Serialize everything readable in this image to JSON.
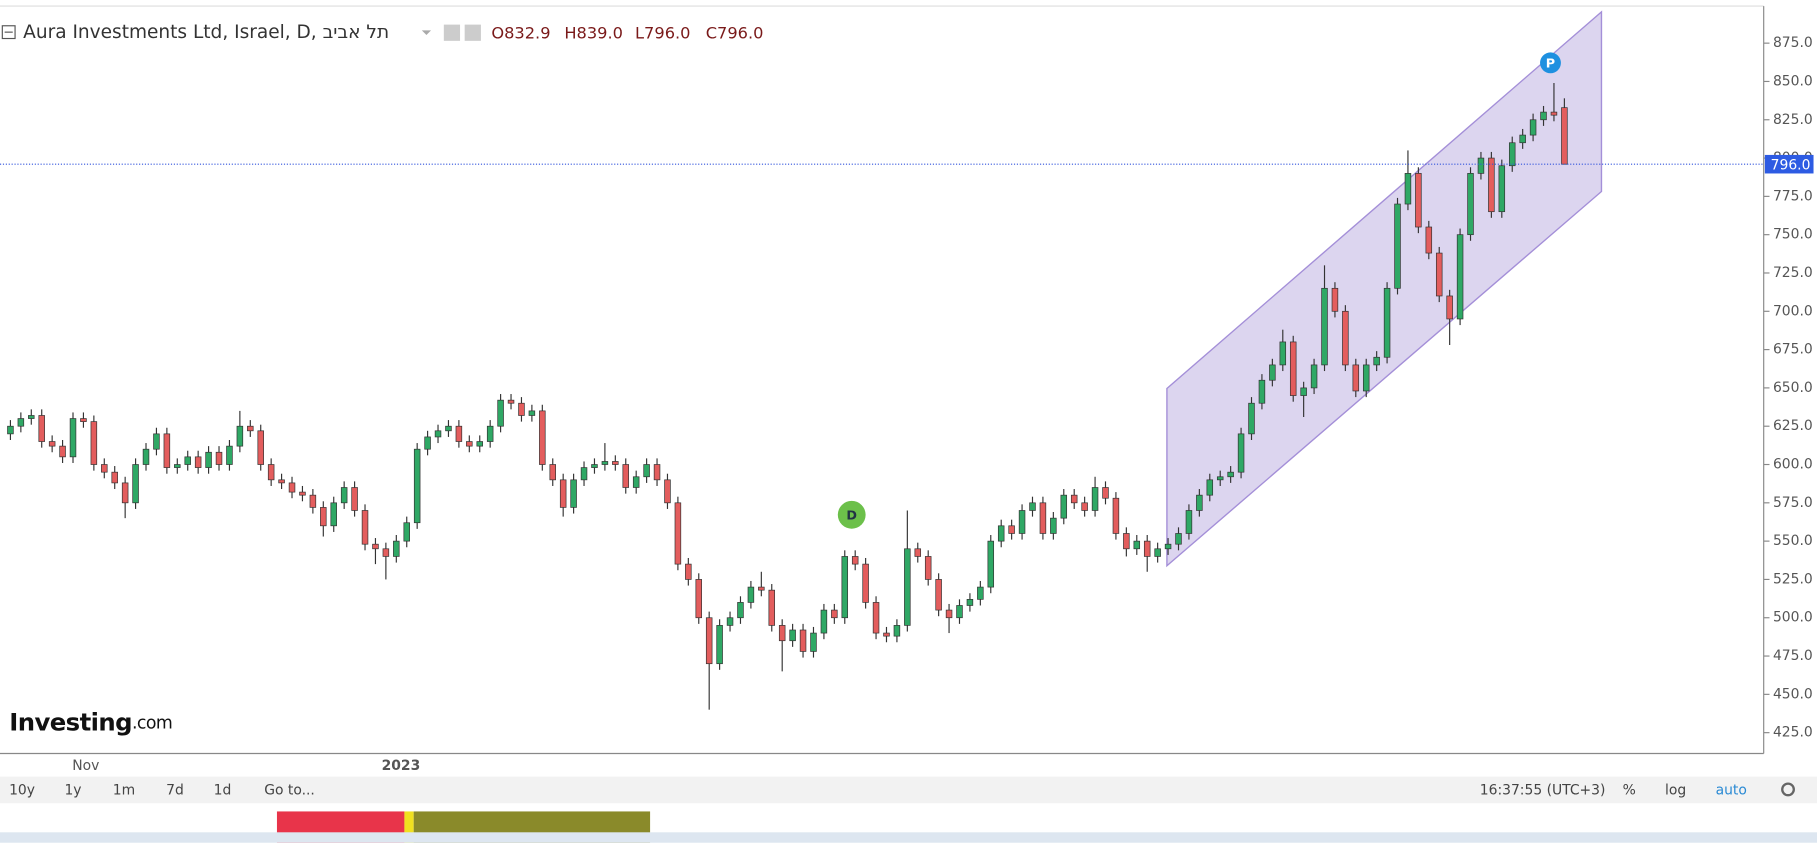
{
  "chart_data": {
    "type": "candlestick",
    "title": "Aura Investments Ltd, Israel, D, תל אביב",
    "ohlc_labels": [
      "O832.9",
      "H839.0",
      "L796.0",
      "C796.0"
    ],
    "last_price": {
      "value": 796,
      "label": "796.0"
    },
    "annotations": [
      "D",
      "P"
    ],
    "x_labels": [
      "Nov",
      "2023"
    ],
    "ylim": [
      411.4,
      899.2
    ],
    "yticks": [
      {
        "value": 425,
        "label": "425.0"
      },
      {
        "value": 450,
        "label": "450.0"
      },
      {
        "value": 475,
        "label": "475.0"
      },
      {
        "value": 500,
        "label": "500.0"
      },
      {
        "value": 525,
        "label": "525.0"
      },
      {
        "value": 550,
        "label": "550.0"
      },
      {
        "value": 575,
        "label": "575.0"
      },
      {
        "value": 600,
        "label": "600.0"
      },
      {
        "value": 625,
        "label": "625.0"
      },
      {
        "value": 650,
        "label": "650.0"
      },
      {
        "value": 675,
        "label": "675.0"
      },
      {
        "value": 700,
        "label": "700.0"
      },
      {
        "value": 725,
        "label": "725.0"
      },
      {
        "value": 750,
        "label": "750.0"
      },
      {
        "value": 775,
        "label": "775.0"
      },
      {
        "value": 800,
        "label": "800.0"
      },
      {
        "value": 825,
        "label": "825.0"
      },
      {
        "value": 850,
        "label": "850.0"
      },
      {
        "value": 875,
        "label": "875.0"
      }
    ],
    "up_color": "#2fa865",
    "down_color": "#e35d5d",
    "candles": [
      [
        620,
        629,
        616,
        625
      ],
      [
        625,
        634,
        621,
        630
      ],
      [
        630,
        636,
        626,
        632
      ],
      [
        632,
        636,
        611,
        615
      ],
      [
        615,
        619,
        608,
        612
      ],
      [
        612,
        616,
        601,
        605
      ],
      [
        605,
        634,
        601,
        630
      ],
      [
        630,
        634,
        624,
        628
      ],
      [
        628,
        632,
        596,
        600
      ],
      [
        600,
        604,
        591,
        595
      ],
      [
        595,
        599,
        584,
        588
      ],
      [
        588,
        592,
        565,
        575
      ],
      [
        575,
        604,
        571,
        600
      ],
      [
        600,
        614,
        596,
        610
      ],
      [
        610,
        624,
        606,
        620
      ],
      [
        620,
        624,
        594,
        598
      ],
      [
        598,
        604,
        594,
        600
      ],
      [
        600,
        609,
        596,
        605
      ],
      [
        605,
        609,
        594,
        598
      ],
      [
        598,
        612,
        594,
        608
      ],
      [
        608,
        612,
        596,
        600
      ],
      [
        600,
        616,
        596,
        612
      ],
      [
        612,
        635,
        608,
        625
      ],
      [
        625,
        629,
        618,
        622
      ],
      [
        622,
        626,
        596,
        600
      ],
      [
        600,
        604,
        586,
        590
      ],
      [
        590,
        594,
        584,
        588
      ],
      [
        588,
        592,
        578,
        582
      ],
      [
        582,
        586,
        576,
        580
      ],
      [
        580,
        584,
        568,
        572
      ],
      [
        572,
        576,
        553,
        560
      ],
      [
        560,
        579,
        556,
        575
      ],
      [
        575,
        589,
        571,
        585
      ],
      [
        585,
        589,
        566,
        570
      ],
      [
        570,
        574,
        544,
        548
      ],
      [
        548,
        552,
        535,
        545
      ],
      [
        545,
        549,
        525,
        540
      ],
      [
        540,
        554,
        536,
        550
      ],
      [
        550,
        566,
        546,
        562
      ],
      [
        562,
        614,
        558,
        610
      ],
      [
        610,
        622,
        606,
        618
      ],
      [
        618,
        626,
        614,
        622
      ],
      [
        622,
        629,
        618,
        625
      ],
      [
        625,
        629,
        611,
        615
      ],
      [
        615,
        619,
        608,
        612
      ],
      [
        612,
        619,
        608,
        615
      ],
      [
        615,
        629,
        611,
        625
      ],
      [
        625,
        646,
        621,
        642
      ],
      [
        642,
        646,
        636,
        640
      ],
      [
        640,
        644,
        628,
        632
      ],
      [
        632,
        639,
        628,
        635
      ],
      [
        635,
        639,
        596,
        600
      ],
      [
        600,
        604,
        586,
        590
      ],
      [
        590,
        594,
        566,
        572
      ],
      [
        572,
        594,
        568,
        590
      ],
      [
        590,
        602,
        586,
        598
      ],
      [
        598,
        604,
        594,
        600
      ],
      [
        600,
        614,
        596,
        602
      ],
      [
        602,
        606,
        596,
        600
      ],
      [
        600,
        604,
        581,
        585
      ],
      [
        585,
        596,
        581,
        592
      ],
      [
        592,
        604,
        588,
        600
      ],
      [
        600,
        604,
        586,
        590
      ],
      [
        590,
        594,
        571,
        575
      ],
      [
        575,
        579,
        531,
        535
      ],
      [
        535,
        539,
        521,
        525
      ],
      [
        525,
        529,
        496,
        500
      ],
      [
        500,
        504,
        440,
        470
      ],
      [
        470,
        499,
        466,
        495
      ],
      [
        495,
        504,
        491,
        500
      ],
      [
        500,
        514,
        496,
        510
      ],
      [
        510,
        524,
        506,
        520
      ],
      [
        520,
        530,
        514,
        518
      ],
      [
        518,
        522,
        491,
        495
      ],
      [
        495,
        499,
        465,
        485
      ],
      [
        485,
        496,
        481,
        492
      ],
      [
        492,
        496,
        474,
        478
      ],
      [
        478,
        494,
        474,
        490
      ],
      [
        490,
        509,
        486,
        505
      ],
      [
        505,
        509,
        496,
        500
      ],
      [
        500,
        544,
        496,
        540
      ],
      [
        540,
        544,
        531,
        535
      ],
      [
        535,
        539,
        506,
        510
      ],
      [
        510,
        514,
        486,
        490
      ],
      [
        490,
        494,
        484,
        488
      ],
      [
        488,
        499,
        484,
        495
      ],
      [
        495,
        570,
        491,
        545
      ],
      [
        545,
        549,
        536,
        540
      ],
      [
        540,
        544,
        521,
        525
      ],
      [
        525,
        529,
        501,
        505
      ],
      [
        505,
        509,
        490,
        500
      ],
      [
        500,
        512,
        496,
        508
      ],
      [
        508,
        516,
        504,
        512
      ],
      [
        512,
        524,
        508,
        520
      ],
      [
        520,
        554,
        516,
        550
      ],
      [
        550,
        564,
        546,
        560
      ],
      [
        560,
        564,
        551,
        555
      ],
      [
        555,
        574,
        551,
        570
      ],
      [
        570,
        579,
        566,
        575
      ],
      [
        575,
        579,
        551,
        555
      ],
      [
        555,
        569,
        551,
        565
      ],
      [
        565,
        584,
        561,
        580
      ],
      [
        580,
        584,
        571,
        575
      ],
      [
        575,
        579,
        566,
        570
      ],
      [
        570,
        592,
        566,
        585
      ],
      [
        585,
        589,
        574,
        578
      ],
      [
        578,
        582,
        551,
        555
      ],
      [
        555,
        559,
        540,
        545
      ],
      [
        545,
        554,
        541,
        550
      ],
      [
        550,
        554,
        530,
        540
      ],
      [
        540,
        549,
        536,
        545
      ],
      [
        545,
        552,
        541,
        548
      ],
      [
        548,
        559,
        544,
        555
      ],
      [
        555,
        574,
        551,
        570
      ],
      [
        570,
        584,
        566,
        580
      ],
      [
        580,
        594,
        576,
        590
      ],
      [
        590,
        596,
        586,
        592
      ],
      [
        592,
        599,
        588,
        595
      ],
      [
        595,
        624,
        591,
        620
      ],
      [
        620,
        644,
        616,
        640
      ],
      [
        640,
        659,
        636,
        655
      ],
      [
        655,
        669,
        651,
        665
      ],
      [
        665,
        688,
        661,
        680
      ],
      [
        680,
        684,
        641,
        645
      ],
      [
        645,
        654,
        631,
        650
      ],
      [
        650,
        669,
        646,
        665
      ],
      [
        665,
        730,
        661,
        715
      ],
      [
        715,
        719,
        696,
        700
      ],
      [
        700,
        704,
        661,
        665
      ],
      [
        665,
        669,
        644,
        648
      ],
      [
        648,
        669,
        644,
        665
      ],
      [
        665,
        674,
        661,
        670
      ],
      [
        670,
        719,
        666,
        715
      ],
      [
        715,
        774,
        711,
        770
      ],
      [
        770,
        805,
        766,
        790
      ],
      [
        790,
        794,
        751,
        755
      ],
      [
        755,
        759,
        734,
        738
      ],
      [
        738,
        742,
        706,
        710
      ],
      [
        710,
        714,
        678,
        695
      ],
      [
        695,
        754,
        691,
        750
      ],
      [
        750,
        794,
        746,
        790
      ],
      [
        790,
        804,
        786,
        800
      ],
      [
        800,
        804,
        761,
        765
      ],
      [
        765,
        799,
        761,
        795
      ],
      [
        795,
        814,
        791,
        810
      ],
      [
        810,
        819,
        806,
        815
      ],
      [
        815,
        829,
        811,
        825
      ],
      [
        825,
        834,
        821,
        830
      ],
      [
        830,
        849,
        824,
        828
      ],
      [
        832.9,
        839,
        796,
        796
      ]
    ]
  },
  "toolbar": {
    "ranges": [
      "10y",
      "1y",
      "1m",
      "7d",
      "1d"
    ],
    "goto": "Go to...",
    "clock": "16:37:55 (UTC+3)",
    "options": [
      "%",
      "log",
      "auto"
    ]
  },
  "logo": {
    "brand": "Investing",
    "suffix": ".com"
  }
}
